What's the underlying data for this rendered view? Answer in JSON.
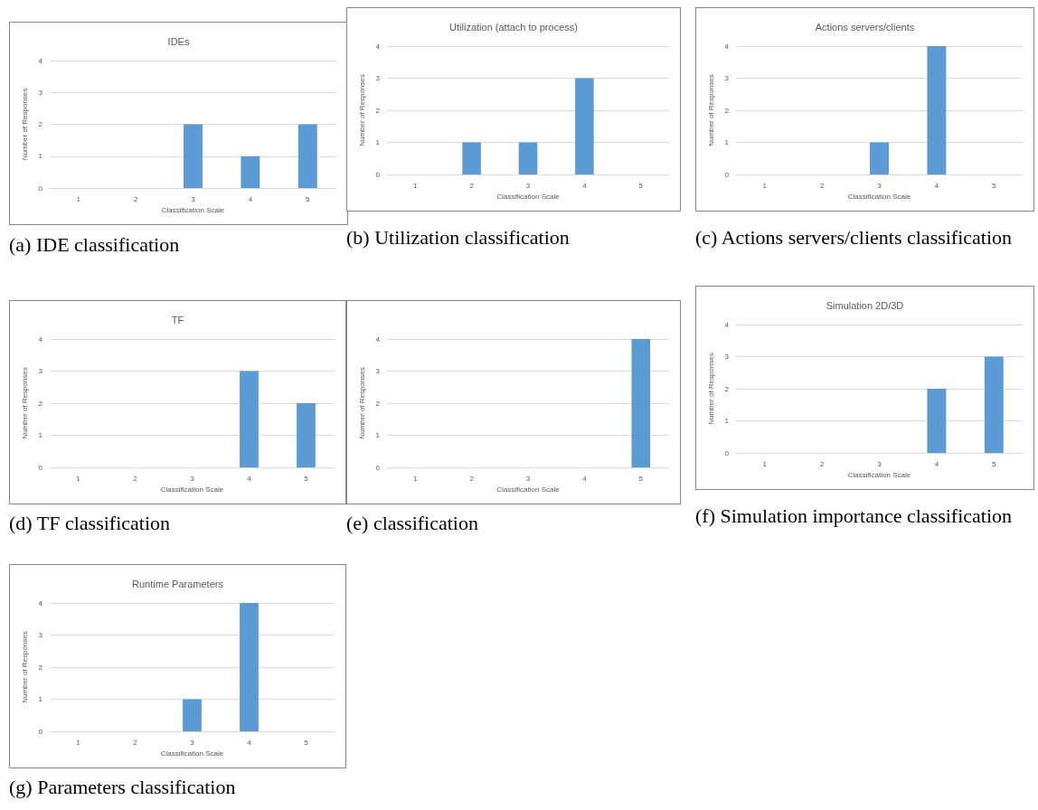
{
  "chart_data": [
    {
      "type": "bar",
      "title": "IDEs",
      "xlabel": "Classification Scale",
      "ylabel": "Number of Responses",
      "categories": [
        "1",
        "2",
        "3",
        "4",
        "5"
      ],
      "values": [
        0,
        0,
        2,
        1,
        2
      ],
      "color": "#5b9bd5",
      "ylim": [
        0,
        4
      ],
      "yticks": [
        0,
        1,
        2,
        3,
        4
      ],
      "grid": "y",
      "annotations": [
        "(a) IDE classification"
      ]
    },
    {
      "type": "bar",
      "title": "Utilization (attach to process)",
      "xlabel": "Classification Scale",
      "ylabel": "Number of Responses",
      "categories": [
        "1",
        "2",
        "3",
        "4",
        "5"
      ],
      "values": [
        0,
        1,
        1,
        3,
        0
      ],
      "color": "#5b9bd5",
      "ylim": [
        0,
        4
      ],
      "yticks": [
        0,
        1,
        2,
        3,
        4
      ],
      "grid": "y",
      "annotations": [
        "(b) Utilization classification"
      ]
    },
    {
      "type": "bar",
      "title": "Actions servers/clients",
      "xlabel": "Classification Scale",
      "ylabel": "Number of Responses",
      "categories": [
        "1",
        "2",
        "3",
        "4",
        "5"
      ],
      "values": [
        0,
        0,
        1,
        4,
        0
      ],
      "color": "#5b9bd5",
      "ylim": [
        0,
        4
      ],
      "yticks": [
        0,
        1,
        2,
        3,
        4
      ],
      "grid": "y",
      "annotations": [
        "(c) Actions servers/clients classification"
      ]
    },
    {
      "type": "bar",
      "title": "TF",
      "xlabel": "Classification Scale",
      "ylabel": "Number of Responses",
      "categories": [
        "1",
        "2",
        "3",
        "4",
        "5"
      ],
      "values": [
        0,
        0,
        0,
        3,
        2
      ],
      "color": "#5b9bd5",
      "ylim": [
        0,
        4
      ],
      "yticks": [
        0,
        1,
        2,
        3,
        4
      ],
      "grid": "y",
      "annotations": [
        "(d) TF classification"
      ]
    },
    {
      "type": "bar",
      "xlabel": "Classification Scale",
      "ylabel": "Number of Responses",
      "categories": [
        "1",
        "2",
        "3",
        "4",
        "5"
      ],
      "values": [
        0,
        0,
        0,
        0,
        4
      ],
      "color": "#5b9bd5",
      "ylim": [
        0,
        4
      ],
      "yticks": [
        0,
        1,
        2,
        3,
        4
      ],
      "grid": "y",
      "annotations": [
        "(e) classification"
      ]
    },
    {
      "type": "bar",
      "title": "Simulation 2D/3D",
      "xlabel": "Classification Scale",
      "ylabel": "Number of Responses",
      "categories": [
        "1",
        "2",
        "3",
        "4",
        "5"
      ],
      "values": [
        0,
        0,
        0,
        2,
        3
      ],
      "color": "#5b9bd5",
      "ylim": [
        0,
        4
      ],
      "yticks": [
        0,
        1,
        2,
        3,
        4
      ],
      "grid": "y",
      "annotations": [
        "(f) Simulation importance classification"
      ]
    },
    {
      "type": "bar",
      "title": "Runtime Parameters",
      "xlabel": "Classification Scale",
      "ylabel": "Number of Responses",
      "categories": [
        "1",
        "2",
        "3",
        "4",
        "5"
      ],
      "values": [
        0,
        0,
        1,
        4,
        0
      ],
      "color": "#5b9bd5",
      "ylim": [
        0,
        4
      ],
      "yticks": [
        0,
        1,
        2,
        3,
        4
      ],
      "grid": "y",
      "annotations": [
        "(g) Parameters classification"
      ]
    }
  ]
}
